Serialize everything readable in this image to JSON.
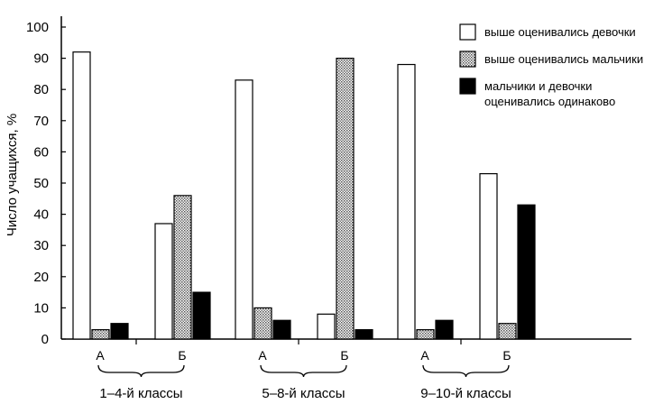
{
  "chart_data": {
    "type": "bar",
    "ylabel": "Число учащихся, %",
    "ylim": [
      0,
      100
    ],
    "yticks": [
      0,
      10,
      20,
      30,
      40,
      50,
      60,
      70,
      80,
      90,
      100
    ],
    "grid": false,
    "legend_position": "top-right",
    "groups": [
      {
        "label": "1–4-й классы",
        "subgroups": [
          "А",
          "Б"
        ]
      },
      {
        "label": "5–8-й классы",
        "subgroups": [
          "А",
          "Б"
        ]
      },
      {
        "label": "9–10-й классы",
        "subgroups": [
          "А",
          "Б"
        ]
      }
    ],
    "categories": [
      "А",
      "Б",
      "А",
      "Б",
      "А",
      "Б"
    ],
    "series": [
      {
        "name": "выше оценивались девочки",
        "fill": "white",
        "values": [
          92,
          37,
          83,
          8,
          88,
          53
        ]
      },
      {
        "name": "выше оценивались мальчики",
        "fill": "dotted-gray",
        "values": [
          3,
          46,
          10,
          90,
          3,
          5
        ]
      },
      {
        "name": "мальчики и девочки оценивались одинаково",
        "fill": "black",
        "values": [
          5,
          15,
          6,
          3,
          6,
          43
        ]
      }
    ],
    "legend_lines": [
      [
        "выше оценивались девочки"
      ],
      [
        "выше оценивались мальчики"
      ],
      [
        "мальчики и девочки",
        "оценивались одинаково"
      ]
    ]
  }
}
